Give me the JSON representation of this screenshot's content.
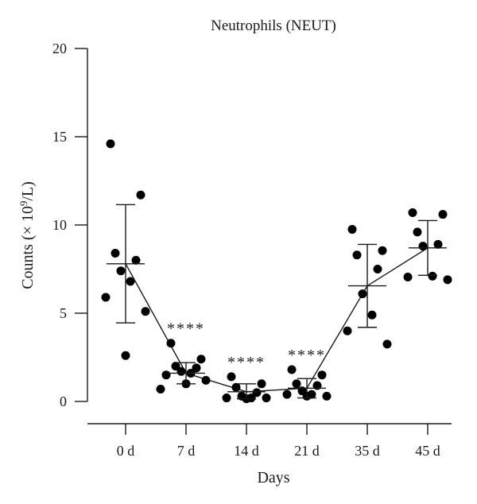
{
  "chart_data": {
    "type": "scatter",
    "title": "Neutrophils (NEUT)",
    "xlabel": "Days",
    "ylabel_prefix": "Counts (× 10",
    "ylabel_sup": "9",
    "ylabel_suffix": "/L)",
    "ylim": [
      0,
      20
    ],
    "yticks": [
      "0",
      "5",
      "10",
      "15",
      "20"
    ],
    "categories": [
      "0 d",
      "7 d",
      "14 d",
      "21 d",
      "35 d",
      "45 d"
    ],
    "groups": [
      {
        "category": "0 d",
        "mean": 7.8,
        "sd_upper": 11.15,
        "sd_lower": 4.45,
        "significance": "",
        "points": [
          14.6,
          11.7,
          8.4,
          8.0,
          7.4,
          6.8,
          5.9,
          5.1,
          2.6
        ]
      },
      {
        "category": "7 d",
        "mean": 1.6,
        "sd_upper": 2.2,
        "sd_lower": 1.0,
        "significance": "****",
        "points": [
          3.3,
          2.4,
          2.0,
          1.9,
          1.7,
          1.6,
          1.5,
          1.2,
          1.0,
          0.7
        ]
      },
      {
        "category": "14 d",
        "mean": 0.55,
        "sd_upper": 1.0,
        "sd_lower": 0.15,
        "significance": "****",
        "points": [
          1.4,
          1.0,
          0.8,
          0.5,
          0.3,
          0.2,
          0.2,
          0.2,
          0.15
        ]
      },
      {
        "category": "21 d",
        "mean": 0.75,
        "sd_upper": 1.3,
        "sd_lower": 0.2,
        "significance": "****",
        "points": [
          1.8,
          1.5,
          1.0,
          0.9,
          0.6,
          0.4,
          0.4,
          0.3,
          0.3
        ]
      },
      {
        "category": "35 d",
        "mean": 6.55,
        "sd_upper": 8.9,
        "sd_lower": 4.2,
        "significance": "",
        "points": [
          9.75,
          8.55,
          8.3,
          7.5,
          6.1,
          4.9,
          4.0,
          3.25
        ]
      },
      {
        "category": "45 d",
        "mean": 8.7,
        "sd_upper": 10.25,
        "sd_lower": 7.15,
        "significance": "",
        "points": [
          10.7,
          10.6,
          9.6,
          8.9,
          8.8,
          7.1,
          7.05,
          6.9
        ]
      }
    ],
    "marker_color": "#000000",
    "line_color": "#1a1a1a",
    "grid": false,
    "legend": "none"
  }
}
